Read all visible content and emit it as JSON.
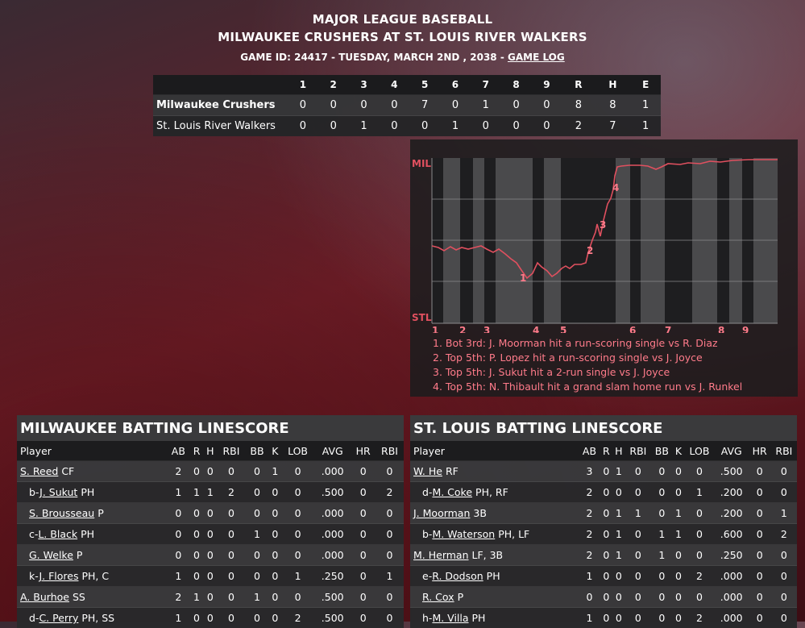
{
  "header": {
    "line1": "MAJOR LEAGUE BASEBALL",
    "line2": "MILWAUKEE CRUSHERS AT ST. LOUIS RIVER WALKERS",
    "line3": "GAME ID: 24417 - TUESDAY, MARCH 2ND , 2038 - ",
    "game_log_link": "GAME LOG"
  },
  "linescore": {
    "columns": [
      "1",
      "2",
      "3",
      "4",
      "5",
      "6",
      "7",
      "8",
      "9",
      "R",
      "H",
      "E"
    ],
    "rows": [
      {
        "team": "Milwaukee Crushers",
        "values": [
          "0",
          "0",
          "0",
          "0",
          "7",
          "0",
          "1",
          "0",
          "0",
          "8",
          "8",
          "1"
        ]
      },
      {
        "team": "St. Louis River Walkers",
        "values": [
          "0",
          "0",
          "1",
          "0",
          "0",
          "1",
          "0",
          "0",
          "0",
          "2",
          "7",
          "1"
        ]
      }
    ]
  },
  "win_probability": {
    "top_label": "MIL",
    "bottom_label": "STL",
    "inning_labels": [
      "1",
      "2",
      "3",
      "4",
      "5",
      "6",
      "7",
      "8",
      "9"
    ],
    "marker_labels": [
      "1",
      "2",
      "3",
      "4"
    ],
    "line_color": "#e0505f",
    "events": [
      "1. Bot 3rd: J. Moorman hit a run-scoring single vs R. Diaz",
      "2. Top 5th: P. Lopez hit a run-scoring single vs J. Joyce",
      "3. Top 5th: J. Sukut hit a 2-run single vs J. Joyce",
      "4. Top 5th: N. Thibault hit a grand slam home run vs J. Runkel"
    ]
  },
  "milwaukee": {
    "title": "MILWAUKEE BATTING LINESCORE",
    "headers": [
      "Player",
      "AB",
      "R",
      "H",
      "RBI",
      "BB",
      "K",
      "LOB",
      "AVG",
      "HR",
      "RBI"
    ],
    "rows": [
      {
        "prefix": "",
        "name": "S. Reed",
        "pos": "CF",
        "sub": false,
        "stats": [
          "2",
          "0",
          "0",
          "0",
          "0",
          "1",
          "0",
          ".000",
          "0",
          "0"
        ]
      },
      {
        "prefix": "b-",
        "name": "J. Sukut",
        "pos": "PH",
        "sub": true,
        "stats": [
          "1",
          "1",
          "1",
          "2",
          "0",
          "0",
          "0",
          ".500",
          "0",
          "2"
        ]
      },
      {
        "prefix": "",
        "name": "S. Brousseau",
        "pos": "P",
        "sub": true,
        "stats": [
          "0",
          "0",
          "0",
          "0",
          "0",
          "0",
          "0",
          ".000",
          "0",
          "0"
        ]
      },
      {
        "prefix": "c-",
        "name": "L. Black",
        "pos": "PH",
        "sub": true,
        "stats": [
          "0",
          "0",
          "0",
          "0",
          "1",
          "0",
          "0",
          ".000",
          "0",
          "0"
        ]
      },
      {
        "prefix": "",
        "name": "G. Welke",
        "pos": "P",
        "sub": true,
        "stats": [
          "0",
          "0",
          "0",
          "0",
          "0",
          "0",
          "0",
          ".000",
          "0",
          "0"
        ]
      },
      {
        "prefix": "k-",
        "name": "J. Flores",
        "pos": "PH, C",
        "sub": true,
        "stats": [
          "1",
          "0",
          "0",
          "0",
          "0",
          "0",
          "1",
          ".250",
          "0",
          "1"
        ]
      },
      {
        "prefix": "",
        "name": "A. Burhoe",
        "pos": "SS",
        "sub": false,
        "stats": [
          "2",
          "1",
          "0",
          "0",
          "1",
          "0",
          "0",
          ".500",
          "0",
          "0"
        ]
      },
      {
        "prefix": "d-",
        "name": "C. Perry",
        "pos": "PH, SS",
        "sub": true,
        "stats": [
          "1",
          "0",
          "0",
          "0",
          "0",
          "0",
          "2",
          ".500",
          "0",
          "0"
        ]
      }
    ]
  },
  "stlouis": {
    "title": "ST. LOUIS BATTING LINESCORE",
    "headers": [
      "Player",
      "AB",
      "R",
      "H",
      "RBI",
      "BB",
      "K",
      "LOB",
      "AVG",
      "HR",
      "RBI"
    ],
    "rows": [
      {
        "prefix": "",
        "name": "W. He",
        "pos": "RF",
        "sub": false,
        "stats": [
          "3",
          "0",
          "1",
          "0",
          "0",
          "0",
          "0",
          ".500",
          "0",
          "0"
        ]
      },
      {
        "prefix": "d-",
        "name": "M. Coke",
        "pos": "PH, RF",
        "sub": true,
        "stats": [
          "2",
          "0",
          "0",
          "0",
          "0",
          "0",
          "1",
          ".200",
          "0",
          "0"
        ]
      },
      {
        "prefix": "",
        "name": "J. Moorman",
        "pos": "3B",
        "sub": false,
        "stats": [
          "2",
          "0",
          "1",
          "1",
          "0",
          "1",
          "0",
          ".200",
          "0",
          "1"
        ]
      },
      {
        "prefix": "b-",
        "name": "M. Waterson",
        "pos": "PH, LF",
        "sub": true,
        "stats": [
          "2",
          "0",
          "1",
          "0",
          "1",
          "1",
          "0",
          ".600",
          "0",
          "2"
        ]
      },
      {
        "prefix": "",
        "name": "M. Herman",
        "pos": "LF, 3B",
        "sub": false,
        "stats": [
          "2",
          "0",
          "1",
          "0",
          "1",
          "0",
          "0",
          ".250",
          "0",
          "0"
        ]
      },
      {
        "prefix": "e-",
        "name": "R. Dodson",
        "pos": "PH",
        "sub": true,
        "stats": [
          "1",
          "0",
          "0",
          "0",
          "0",
          "0",
          "2",
          ".000",
          "0",
          "0"
        ]
      },
      {
        "prefix": "",
        "name": "R. Cox",
        "pos": "P",
        "sub": true,
        "stats": [
          "0",
          "0",
          "0",
          "0",
          "0",
          "0",
          "0",
          ".000",
          "0",
          "0"
        ]
      },
      {
        "prefix": "h-",
        "name": "M. Villa",
        "pos": "PH",
        "sub": true,
        "stats": [
          "1",
          "0",
          "0",
          "0",
          "0",
          "0",
          "2",
          ".000",
          "0",
          "0"
        ]
      }
    ]
  }
}
